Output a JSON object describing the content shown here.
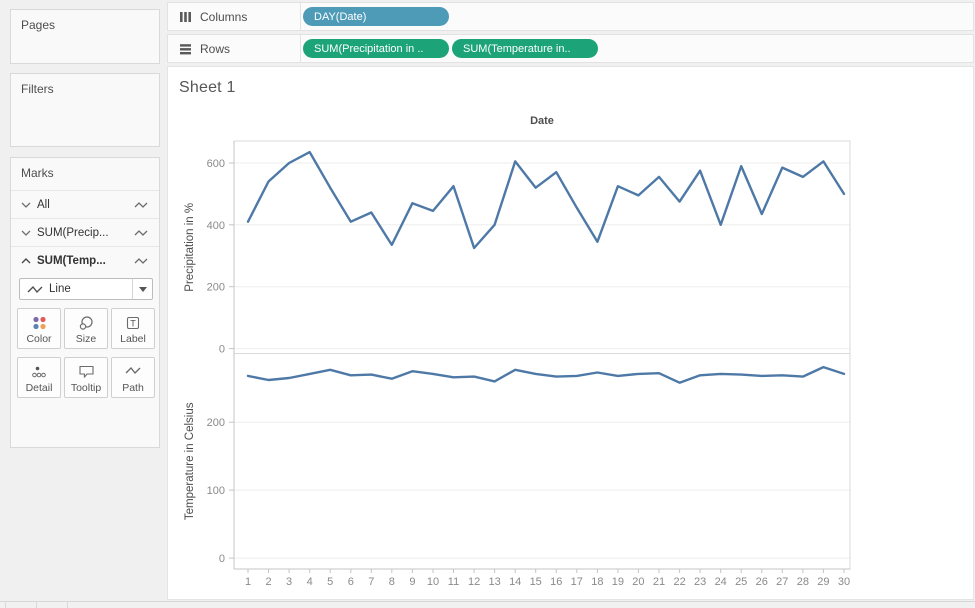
{
  "shelves": {
    "columns": {
      "label": "Columns",
      "pills": [
        {
          "label": "DAY(Date)",
          "color": "#4e9bb8"
        }
      ]
    },
    "rows": {
      "label": "Rows",
      "pills": [
        {
          "label": "SUM(Precipitation in ..",
          "color": "#1ca478"
        },
        {
          "label": "SUM(Temperature in..",
          "color": "#1ca478"
        }
      ]
    }
  },
  "sidebar": {
    "pages": {
      "label": "Pages"
    },
    "filters": {
      "label": "Filters"
    },
    "marks": {
      "label": "Marks",
      "items": [
        {
          "label": "All",
          "expanded": false
        },
        {
          "label": "SUM(Precip...",
          "expanded": false
        },
        {
          "label": "SUM(Temp...",
          "expanded": true
        }
      ],
      "mark_type": "Line",
      "buttons": [
        {
          "label": "Color"
        },
        {
          "label": "Size"
        },
        {
          "label": "Label"
        },
        {
          "label": "Detail"
        },
        {
          "label": "Tooltip"
        },
        {
          "label": "Path"
        }
      ]
    }
  },
  "sheet": {
    "title": "Sheet 1"
  },
  "chart_data": {
    "type": "line",
    "title": "Sheet 1",
    "x_header": "Date",
    "x": [
      1,
      2,
      3,
      4,
      5,
      6,
      7,
      8,
      9,
      10,
      11,
      12,
      13,
      14,
      15,
      16,
      17,
      18,
      19,
      20,
      21,
      22,
      23,
      24,
      25,
      26,
      27,
      28,
      29,
      30
    ],
    "line_color": "#4e79a7",
    "grid": "horizontal-only",
    "legend": "none",
    "panes": [
      {
        "ylabel": "Precipitation in %",
        "yticks": [
          0,
          200,
          400,
          600
        ],
        "ylim": [
          -16,
          671
        ],
        "values": [
          410,
          540,
          600,
          635,
          520,
          410,
          440,
          335,
          470,
          445,
          525,
          325,
          400,
          605,
          520,
          570,
          455,
          345,
          525,
          495,
          555,
          475,
          575,
          400,
          590,
          435,
          585,
          555,
          605,
          500
        ]
      },
      {
        "ylabel": "Temperature in Celsius",
        "yticks": [
          0,
          100,
          200
        ],
        "ylim": [
          -16,
          301
        ],
        "values": [
          268,
          262,
          265,
          271,
          277,
          269,
          270,
          264,
          275,
          271,
          266,
          267,
          260,
          277,
          271,
          267,
          268,
          273,
          268,
          271,
          272,
          258,
          269,
          271,
          270,
          268,
          269,
          267,
          281,
          271
        ]
      }
    ]
  }
}
